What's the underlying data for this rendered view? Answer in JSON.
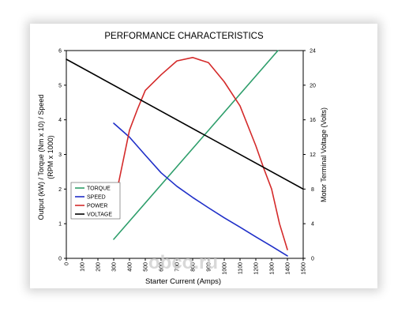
{
  "chart_data": {
    "type": "line",
    "title": "PERFORMANCE CHARACTERISTICS",
    "xlabel": "Starter Current (Amps)",
    "ylabel_left": [
      "Output (kW) / Torque (Nm x 10) / Speed",
      "(RPM x 1000)"
    ],
    "ylabel_right": "Motor Terminal Voltage (Volts)",
    "xlim": [
      0,
      1500
    ],
    "ylim_left": [
      0,
      6
    ],
    "ylim_right": [
      0,
      24
    ],
    "x_ticks": [
      "0",
      "100",
      "200",
      "300",
      "400",
      "500",
      "600",
      "700",
      "800",
      "900",
      "1000",
      "1100",
      "1200",
      "1300",
      "1400",
      "1500"
    ],
    "y_ticks_left": [
      "0",
      "1",
      "2",
      "3",
      "4",
      "5",
      "6"
    ],
    "y_ticks_right": [
      "0",
      "4",
      "8",
      "12",
      "16",
      "20",
      "24"
    ],
    "grid": false,
    "legend_position": "lower-left",
    "series": [
      {
        "name": "TORQUE",
        "axis": "left",
        "color": "#2e9e6b",
        "x": [
          300,
          1340
        ],
        "y": [
          0.55,
          6.0
        ]
      },
      {
        "name": "SPEED",
        "axis": "left",
        "color": "#1f2fc8",
        "x": [
          300,
          400,
          500,
          600,
          700,
          800,
          900,
          1000,
          1100,
          1200,
          1300,
          1400
        ],
        "y": [
          3.9,
          3.5,
          2.98,
          2.47,
          2.08,
          1.76,
          1.46,
          1.17,
          0.9,
          0.62,
          0.35,
          0.07
        ]
      },
      {
        "name": "POWER",
        "axis": "left",
        "color": "#d42a2a",
        "x": [
          300,
          350,
          400,
          450,
          500,
          600,
          700,
          800,
          900,
          1000,
          1100,
          1200,
          1250,
          1300,
          1350,
          1400
        ],
        "y": [
          1.5,
          2.6,
          3.7,
          4.3,
          4.85,
          5.3,
          5.7,
          5.8,
          5.65,
          5.1,
          4.4,
          3.25,
          2.6,
          2.0,
          1.0,
          0.25
        ]
      },
      {
        "name": "VOLTAGE",
        "axis": "right",
        "color": "#000000",
        "x": [
          0,
          1500
        ],
        "y": [
          23.0,
          8.0
        ]
      }
    ]
  },
  "watermark": "obco.ru"
}
